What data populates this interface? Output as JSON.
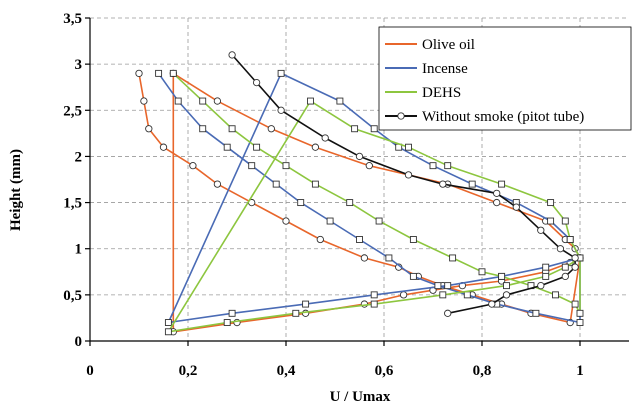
{
  "chart_data": {
    "type": "line",
    "xlabel": "U / Umax",
    "ylabel": "Height (mm)",
    "xlim": [
      0,
      1.1
    ],
    "ylim": [
      0,
      3.5
    ],
    "x_ticks": [
      {
        "value": 0,
        "label": "0"
      },
      {
        "value": 0.2,
        "label": "0,2"
      },
      {
        "value": 0.4,
        "label": "0,4"
      },
      {
        "value": 0.6,
        "label": "0,6"
      },
      {
        "value": 0.8,
        "label": "0,8"
      },
      {
        "value": 1.0,
        "label": "1"
      }
    ],
    "y_ticks": [
      {
        "value": 0,
        "label": "0"
      },
      {
        "value": 0.5,
        "label": "0,5"
      },
      {
        "value": 1,
        "label": "1"
      },
      {
        "value": 1.5,
        "label": "1,5"
      },
      {
        "value": 2,
        "label": "2"
      },
      {
        "value": 2.5,
        "label": "2,5"
      },
      {
        "value": 3,
        "label": "3"
      },
      {
        "value": 3.5,
        "label": "3,5"
      }
    ],
    "grid": true,
    "legend": "top-right",
    "series": [
      {
        "name": "Olive oil",
        "color": "#E8662B",
        "marker": "circle",
        "points": [
          [
            0.1,
            2.9
          ],
          [
            0.11,
            2.6
          ],
          [
            0.12,
            2.3
          ],
          [
            0.15,
            2.1
          ],
          [
            0.21,
            1.9
          ],
          [
            0.26,
            1.7
          ],
          [
            0.33,
            1.5
          ],
          [
            0.4,
            1.3
          ],
          [
            0.47,
            1.1
          ],
          [
            0.56,
            0.9
          ],
          [
            0.63,
            0.8
          ],
          [
            0.67,
            0.7
          ],
          [
            0.72,
            0.6
          ],
          [
            0.78,
            0.5
          ],
          [
            0.84,
            0.4
          ],
          [
            0.9,
            0.3
          ],
          [
            0.98,
            0.2
          ],
          [
            1.0,
            0.9
          ],
          [
            0.99,
            1.0
          ],
          [
            0.97,
            1.1
          ],
          [
            0.93,
            1.3
          ],
          [
            0.83,
            1.5
          ],
          [
            0.73,
            1.7
          ],
          [
            0.57,
            1.9
          ],
          [
            0.46,
            2.1
          ],
          [
            0.37,
            2.3
          ],
          [
            0.26,
            2.6
          ],
          [
            0.17,
            2.9
          ],
          [
            0.17,
            0.1
          ],
          [
            0.3,
            0.2
          ],
          [
            0.44,
            0.3
          ],
          [
            0.56,
            0.4
          ],
          [
            0.64,
            0.5
          ],
          [
            0.7,
            0.55
          ],
          [
            0.76,
            0.6
          ],
          [
            0.84,
            0.65
          ],
          [
            0.93,
            0.75
          ],
          [
            0.98,
            0.85
          ],
          [
            1.0,
            0.9
          ]
        ]
      },
      {
        "name": "Incense",
        "color": "#4A6BB5",
        "marker": "square",
        "points": [
          [
            0.14,
            2.9
          ],
          [
            0.18,
            2.6
          ],
          [
            0.23,
            2.3
          ],
          [
            0.28,
            2.1
          ],
          [
            0.33,
            1.9
          ],
          [
            0.38,
            1.7
          ],
          [
            0.43,
            1.5
          ],
          [
            0.49,
            1.3
          ],
          [
            0.55,
            1.1
          ],
          [
            0.61,
            0.9
          ],
          [
            0.66,
            0.7
          ],
          [
            0.71,
            0.6
          ],
          [
            0.77,
            0.5
          ],
          [
            0.83,
            0.4
          ],
          [
            0.91,
            0.3
          ],
          [
            1.0,
            0.2
          ],
          [
            1.0,
            0.9
          ],
          [
            0.98,
            1.1
          ],
          [
            0.94,
            1.3
          ],
          [
            0.87,
            1.5
          ],
          [
            0.78,
            1.7
          ],
          [
            0.7,
            1.9
          ],
          [
            0.63,
            2.1
          ],
          [
            0.58,
            2.3
          ],
          [
            0.51,
            2.6
          ],
          [
            0.39,
            2.9
          ],
          [
            0.16,
            0.2
          ],
          [
            0.29,
            0.3
          ],
          [
            0.44,
            0.4
          ],
          [
            0.58,
            0.5
          ],
          [
            0.73,
            0.6
          ],
          [
            0.84,
            0.7
          ],
          [
            0.93,
            0.8
          ],
          [
            1.0,
            0.9
          ]
        ]
      },
      {
        "name": "DEHS",
        "color": "#8DC63F",
        "marker": "square",
        "points": [
          [
            0.17,
            2.9
          ],
          [
            0.23,
            2.6
          ],
          [
            0.29,
            2.3
          ],
          [
            0.34,
            2.1
          ],
          [
            0.4,
            1.9
          ],
          [
            0.46,
            1.7
          ],
          [
            0.53,
            1.5
          ],
          [
            0.59,
            1.3
          ],
          [
            0.66,
            1.1
          ],
          [
            0.74,
            0.9
          ],
          [
            0.8,
            0.75
          ],
          [
            0.84,
            0.7
          ],
          [
            0.9,
            0.6
          ],
          [
            0.95,
            0.5
          ],
          [
            0.99,
            0.4
          ],
          [
            1.0,
            0.3
          ],
          [
            1.0,
            0.9
          ],
          [
            0.98,
            1.1
          ],
          [
            0.97,
            1.3
          ],
          [
            0.94,
            1.5
          ],
          [
            0.84,
            1.7
          ],
          [
            0.73,
            1.9
          ],
          [
            0.65,
            2.1
          ],
          [
            0.54,
            2.3
          ],
          [
            0.45,
            2.6
          ],
          [
            0.16,
            0.1
          ],
          [
            0.28,
            0.2
          ],
          [
            0.42,
            0.3
          ],
          [
            0.58,
            0.4
          ],
          [
            0.72,
            0.5
          ],
          [
            0.85,
            0.6
          ],
          [
            0.93,
            0.7
          ],
          [
            0.97,
            0.8
          ],
          [
            1.0,
            0.9
          ]
        ]
      },
      {
        "name": "Without smoke (pitot tube)",
        "color": "#111111",
        "marker": "circle",
        "points": [
          [
            0.29,
            3.1
          ],
          [
            0.34,
            2.8
          ],
          [
            0.39,
            2.5
          ],
          [
            0.48,
            2.2
          ],
          [
            0.55,
            2.0
          ],
          [
            0.65,
            1.8
          ],
          [
            0.72,
            1.7
          ],
          [
            0.83,
            1.6
          ],
          [
            0.87,
            1.45
          ],
          [
            0.92,
            1.2
          ],
          [
            0.96,
            1.0
          ],
          [
            0.99,
            0.9
          ],
          [
            0.99,
            0.8
          ],
          [
            0.97,
            0.7
          ],
          [
            0.92,
            0.6
          ],
          [
            0.85,
            0.5
          ],
          [
            0.82,
            0.4
          ],
          [
            0.73,
            0.3
          ]
        ]
      }
    ]
  }
}
